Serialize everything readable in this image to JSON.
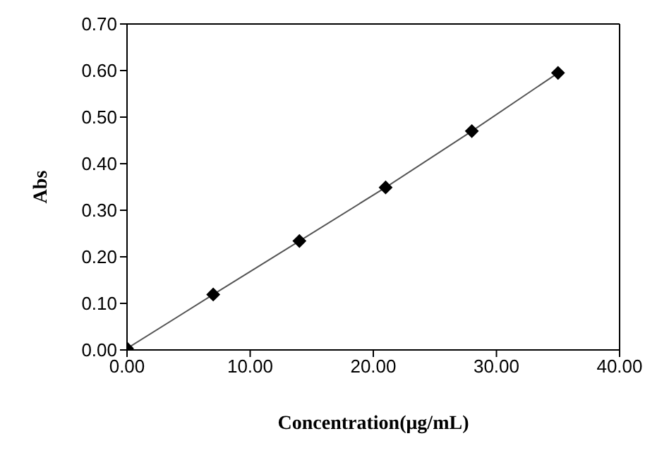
{
  "chart_data": {
    "type": "line",
    "xlabel": "Concentration(μg/mL)",
    "ylabel": "Abs",
    "x": [
      0,
      7,
      14,
      21,
      28,
      35
    ],
    "series": [
      {
        "color": "#000000",
        "values": [
          0.003,
          0.119,
          0.234,
          0.349,
          0.47,
          0.595
        ]
      }
    ],
    "xlim": [
      0,
      40
    ],
    "xticks": [
      {
        "value": 0,
        "label": "0.00"
      },
      {
        "value": 10,
        "label": "10.00"
      },
      {
        "value": 20,
        "label": "20.00"
      },
      {
        "value": 30,
        "label": "30.00"
      },
      {
        "value": 40,
        "label": "40.00"
      }
    ],
    "ylim": [
      0,
      0.7
    ],
    "yticks": [
      {
        "value": 0,
        "label": "0.00"
      },
      {
        "value": 0.1,
        "label": "0.10"
      },
      {
        "value": 0.2,
        "label": "0.20"
      },
      {
        "value": 0.3,
        "label": "0.30"
      },
      {
        "value": 0.4,
        "label": "0.40"
      },
      {
        "value": 0.5,
        "label": "0.50"
      },
      {
        "value": 0.6,
        "label": "0.60"
      },
      {
        "value": 0.7,
        "label": "0.70"
      }
    ],
    "grid": false,
    "legend": false,
    "marker": "diamond",
    "line_style": "solid"
  }
}
